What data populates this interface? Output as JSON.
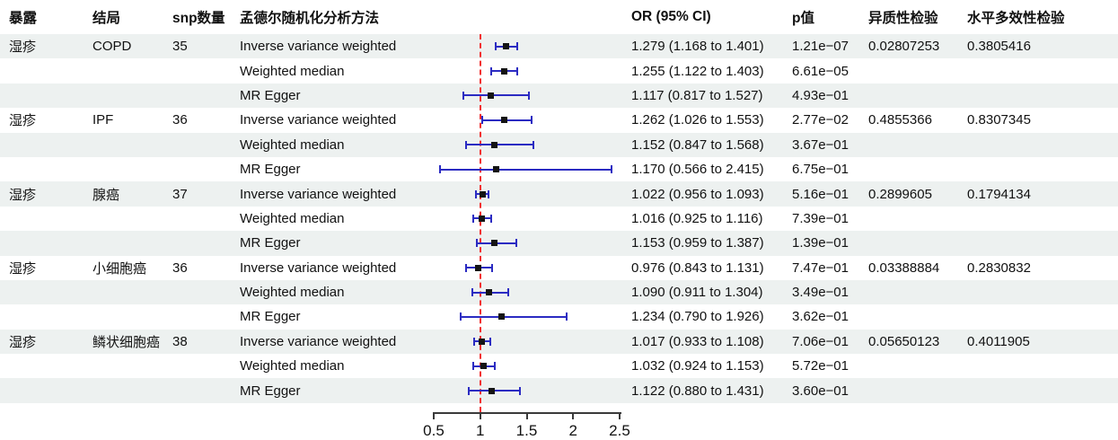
{
  "header": {
    "exposure": "暴露",
    "outcome": "结局",
    "snp": "snp数量",
    "method": "孟德尔随机化分析方法",
    "or_ci": "OR (95% CI)",
    "p": "p值",
    "heterogeneity": "异质性检验",
    "pleiotropy": "水平多效性检验"
  },
  "colors": {
    "ci_bar": "#2b2bc2",
    "point_marker": "#141414",
    "ref_line": "#f23030",
    "row_stripe": "#edf1f0",
    "axis": "#3a3a3a"
  },
  "chart_data": {
    "type": "forest",
    "x_axis": {
      "ticks": [
        0.5,
        1,
        1.5,
        2,
        2.5
      ],
      "range": [
        0.5,
        2.5
      ],
      "ref_line": 1
    },
    "rows": [
      {
        "exposure": "湿疹",
        "outcome": "COPD",
        "snp": "35",
        "method": "Inverse variance weighted",
        "or": 1.279,
        "lo": 1.168,
        "hi": 1.401,
        "or_ci": "1.279 (1.168 to 1.401)",
        "p": "1.21e−07",
        "het": "0.02807253",
        "pleio": "0.3805416"
      },
      {
        "exposure": "",
        "outcome": "",
        "snp": "",
        "method": "Weighted median",
        "or": 1.255,
        "lo": 1.122,
        "hi": 1.403,
        "or_ci": "1.255 (1.122 to 1.403)",
        "p": "6.61e−05",
        "het": "",
        "pleio": ""
      },
      {
        "exposure": "",
        "outcome": "",
        "snp": "",
        "method": "MR Egger",
        "or": 1.117,
        "lo": 0.817,
        "hi": 1.527,
        "or_ci": "1.117 (0.817 to 1.527)",
        "p": "4.93e−01",
        "het": "",
        "pleio": ""
      },
      {
        "exposure": "湿疹",
        "outcome": "IPF",
        "snp": "36",
        "method": "Inverse variance weighted",
        "or": 1.262,
        "lo": 1.026,
        "hi": 1.553,
        "or_ci": "1.262 (1.026 to 1.553)",
        "p": "2.77e−02",
        "het": "0.4855366",
        "pleio": "0.8307345"
      },
      {
        "exposure": "",
        "outcome": "",
        "snp": "",
        "method": "Weighted median",
        "or": 1.152,
        "lo": 0.847,
        "hi": 1.568,
        "or_ci": "1.152 (0.847 to 1.568)",
        "p": "3.67e−01",
        "het": "",
        "pleio": ""
      },
      {
        "exposure": "",
        "outcome": "",
        "snp": "",
        "method": "MR Egger",
        "or": 1.17,
        "lo": 0.566,
        "hi": 2.415,
        "or_ci": "1.170 (0.566 to 2.415)",
        "p": "6.75e−01",
        "het": "",
        "pleio": ""
      },
      {
        "exposure": "湿疹",
        "outcome": "腺癌",
        "snp": "37",
        "method": "Inverse variance weighted",
        "or": 1.022,
        "lo": 0.956,
        "hi": 1.093,
        "or_ci": "1.022 (0.956 to 1.093)",
        "p": "5.16e−01",
        "het": "0.2899605",
        "pleio": "0.1794134"
      },
      {
        "exposure": "",
        "outcome": "",
        "snp": "",
        "method": "Weighted median",
        "or": 1.016,
        "lo": 0.925,
        "hi": 1.116,
        "or_ci": "1.016 (0.925 to 1.116)",
        "p": "7.39e−01",
        "het": "",
        "pleio": ""
      },
      {
        "exposure": "",
        "outcome": "",
        "snp": "",
        "method": "MR Egger",
        "or": 1.153,
        "lo": 0.959,
        "hi": 1.387,
        "or_ci": "1.153 (0.959 to 1.387)",
        "p": "1.39e−01",
        "het": "",
        "pleio": ""
      },
      {
        "exposure": "湿疹",
        "outcome": "小细胞癌",
        "snp": "36",
        "method": "Inverse variance weighted",
        "or": 0.976,
        "lo": 0.843,
        "hi": 1.131,
        "or_ci": "0.976 (0.843 to 1.131)",
        "p": "7.47e−01",
        "het": "0.03388884",
        "pleio": "0.2830832"
      },
      {
        "exposure": "",
        "outcome": "",
        "snp": "",
        "method": "Weighted median",
        "or": 1.09,
        "lo": 0.911,
        "hi": 1.304,
        "or_ci": "1.090 (0.911 to 1.304)",
        "p": "3.49e−01",
        "het": "",
        "pleio": ""
      },
      {
        "exposure": "",
        "outcome": "",
        "snp": "",
        "method": "MR Egger",
        "or": 1.234,
        "lo": 0.79,
        "hi": 1.926,
        "or_ci": "1.234 (0.790 to 1.926)",
        "p": "3.62e−01",
        "het": "",
        "pleio": ""
      },
      {
        "exposure": "湿疹",
        "outcome": "鳞状细胞癌",
        "snp": "38",
        "method": "Inverse variance weighted",
        "or": 1.017,
        "lo": 0.933,
        "hi": 1.108,
        "or_ci": "1.017 (0.933 to 1.108)",
        "p": "7.06e−01",
        "het": "0.05650123",
        "pleio": "0.4011905"
      },
      {
        "exposure": "",
        "outcome": "",
        "snp": "",
        "method": "Weighted median",
        "or": 1.032,
        "lo": 0.924,
        "hi": 1.153,
        "or_ci": "1.032 (0.924 to 1.153)",
        "p": "5.72e−01",
        "het": "",
        "pleio": ""
      },
      {
        "exposure": "",
        "outcome": "",
        "snp": "",
        "method": "MR Egger",
        "or": 1.122,
        "lo": 0.88,
        "hi": 1.431,
        "or_ci": "1.122 (0.880 to 1.431)",
        "p": "3.60e−01",
        "het": "",
        "pleio": ""
      }
    ]
  }
}
